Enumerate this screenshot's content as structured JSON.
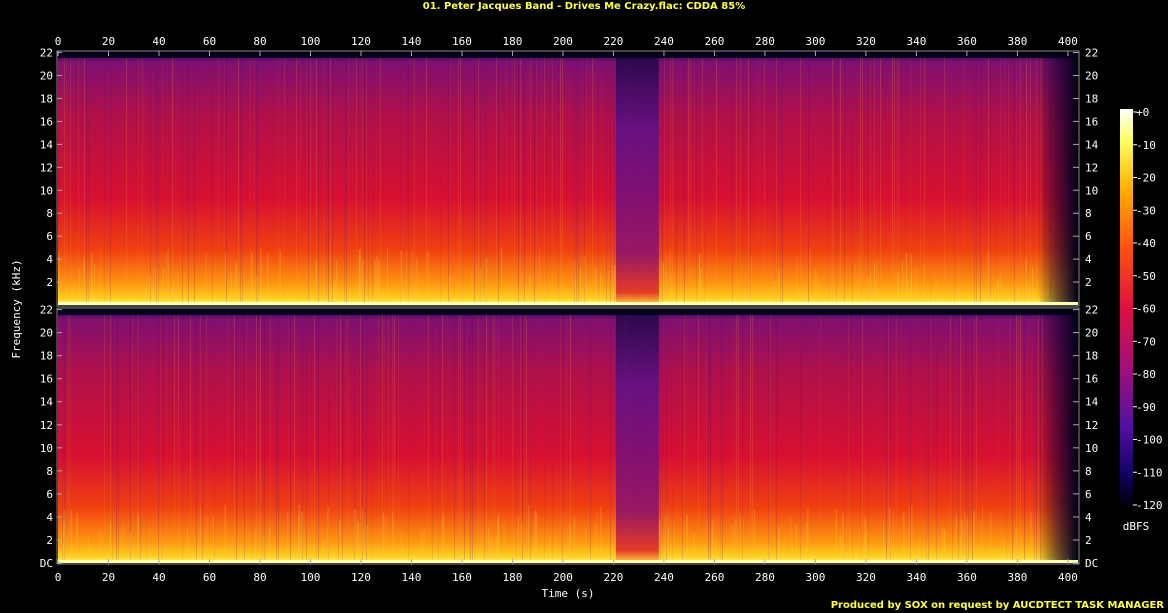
{
  "title": "01. Peter Jacques Band - Drives Me Crazy.flac: CDDA 85%",
  "footer": "Produced by SOX on request by AUCDTECT TASK MANAGER",
  "colors": {
    "background": "#000000",
    "title": "#ffff4a",
    "axis": "#888888",
    "label": "#ffffff"
  },
  "chart_data": {
    "type": "heatmap",
    "title": "01. Peter Jacques Band - Drives Me Crazy.flac: CDDA 85%",
    "xlabel": "Time (s)",
    "ylabel": "Frequency (kHz)",
    "colorbar_label": "dBFS",
    "xlim": [
      0,
      404
    ],
    "ylim": [
      0,
      22.05
    ],
    "x_ticks": [
      "0",
      "20",
      "40",
      "60",
      "80",
      "100",
      "120",
      "140",
      "160",
      "180",
      "200",
      "220",
      "240",
      "260",
      "280",
      "300",
      "320",
      "340",
      "360",
      "380",
      "400"
    ],
    "y_ticks_top": [
      "22",
      "20",
      "18",
      "16",
      "14",
      "12",
      "10",
      "8",
      "6",
      "4",
      "2"
    ],
    "y_ticks_bottom": [
      "22",
      "20",
      "18",
      "16",
      "14",
      "12",
      "10",
      "8",
      "6",
      "4",
      "2",
      "DC"
    ],
    "colorbar_ticks": [
      "+0",
      "-10",
      "-20",
      "-30",
      "-40",
      "-50",
      "-60",
      "-70",
      "-80",
      "-90",
      "-100",
      "-110",
      "-120"
    ],
    "colorbar_range": [
      -120,
      0
    ],
    "channels": 2,
    "gaps_s": [
      [
        221,
        238
      ]
    ],
    "fade_out_s": [
      388,
      404
    ]
  }
}
